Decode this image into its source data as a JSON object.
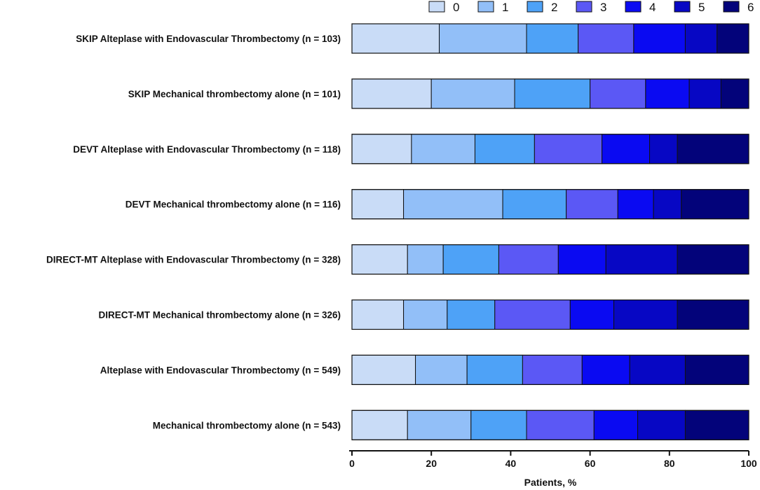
{
  "chart_data": {
    "type": "bar",
    "orientation": "horizontal",
    "stacked": true,
    "title": "",
    "xlabel": "Patients, %",
    "ylabel": "",
    "xlim": [
      0,
      100
    ],
    "xticks": [
      "0",
      "20",
      "40",
      "60",
      "80",
      "100"
    ],
    "grid": false,
    "legend_position": "top-right",
    "categories": [
      "SKIP Alteplase with Endovascular Thrombectomy (n = 103)",
      "SKIP Mechanical thrombectomy alone (n = 101)",
      "DEVT Alteplase with Endovascular Thrombectomy (n = 118)",
      "DEVT Mechanical thrombectomy alone (n = 116)",
      "DIRECT-MT Alteplase with Endovascular Thrombectomy (n = 328)",
      "DIRECT-MT Mechanical thrombectomy alone (n = 326)",
      "Alteplase with Endovascular Thrombectomy (n = 549)",
      "Mechanical thrombectomy alone (n = 543)"
    ],
    "series": [
      {
        "name": "0",
        "color": "#c9dcf7",
        "values": [
          22,
          20,
          15,
          13,
          14,
          13,
          16,
          14
        ]
      },
      {
        "name": "1",
        "color": "#92bff8",
        "values": [
          22,
          21,
          16,
          25,
          9,
          11,
          13,
          16
        ]
      },
      {
        "name": "2",
        "color": "#4ea2f7",
        "values": [
          13,
          19,
          15,
          16,
          14,
          12,
          14,
          14
        ]
      },
      {
        "name": "3",
        "color": "#5b58f5",
        "values": [
          14,
          14,
          17,
          13,
          15,
          19,
          15,
          17
        ]
      },
      {
        "name": "4",
        "color": "#0a0af2",
        "values": [
          13,
          11,
          12,
          9,
          12,
          11,
          12,
          11
        ]
      },
      {
        "name": "5",
        "color": "#0707c4",
        "values": [
          8,
          8,
          7,
          7,
          18,
          16,
          14,
          12
        ]
      },
      {
        "name": "6",
        "color": "#03037a",
        "values": [
          8,
          7,
          18,
          17,
          18,
          18,
          16,
          16
        ]
      }
    ]
  }
}
